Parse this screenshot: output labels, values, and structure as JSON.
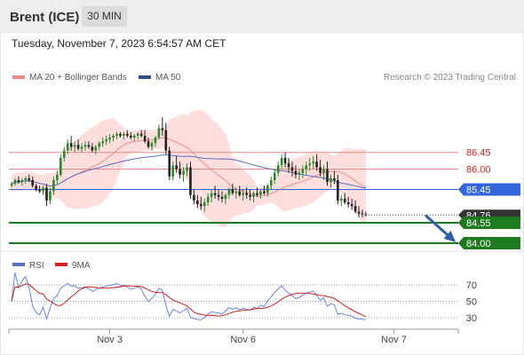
{
  "header": {
    "title": "Brent (ICE)",
    "timeframe": "30 MIN"
  },
  "timestamp": "Tuesday, November 7, 2023 6:54:57 AM CET",
  "legend": {
    "ma20": "MA 20 + Bollinger Bands",
    "ma50": "MA 50",
    "copyright": "Research © 2023 Trading Central"
  },
  "rsi_legend": {
    "rsi": "RSI",
    "ma9": "9MA"
  },
  "colors": {
    "ma20": "#f08a8a",
    "band": "#ffd6d6",
    "ma50": "#5c6fc4",
    "up": "#2a8a2a",
    "down": "#222222",
    "resistance": "#f08a8a",
    "support": "#1e7a1e",
    "pivot": "#3366dd",
    "price_tag": "#333333",
    "arrow": "#2f5fa0",
    "rsi": "#6a85e0",
    "rsi_ma": "#d42020"
  },
  "chart_data": {
    "type": "candlestick",
    "ylim": [
      83.64,
      88.24
    ],
    "levels": [
      {
        "value": 86.45,
        "label": "86.45",
        "kind": "resistance"
      },
      {
        "value": 86.0,
        "label": "86.00",
        "kind": "resistance"
      },
      {
        "value": 85.45,
        "label": "85.45",
        "kind": "pivot"
      },
      {
        "value": 84.55,
        "label": "84.55",
        "kind": "support"
      },
      {
        "value": 84.0,
        "label": "84.00",
        "kind": "support"
      }
    ],
    "last_price": {
      "value": 84.76,
      "label": "84.76"
    },
    "forecast": {
      "from_bar": 118,
      "from": 84.75,
      "to": 84.0
    },
    "x_labels": [
      {
        "bar": 28,
        "label": "Nov 3"
      },
      {
        "bar": 66,
        "label": "Nov 6"
      },
      {
        "bar": 109,
        "label": "Nov 7"
      }
    ],
    "candles": [
      [
        85.55,
        85.65,
        85.5,
        85.6
      ],
      [
        85.6,
        85.75,
        85.55,
        85.7
      ],
      [
        85.7,
        85.8,
        85.6,
        85.65
      ],
      [
        85.65,
        85.75,
        85.55,
        85.7
      ],
      [
        85.7,
        85.8,
        85.6,
        85.75
      ],
      [
        85.75,
        85.85,
        85.65,
        85.7
      ],
      [
        85.7,
        85.8,
        85.5,
        85.55
      ],
      [
        85.55,
        85.6,
        85.4,
        85.45
      ],
      [
        85.45,
        85.55,
        85.35,
        85.4
      ],
      [
        85.4,
        85.55,
        85.3,
        85.5
      ],
      [
        85.5,
        85.6,
        85.0,
        85.15
      ],
      [
        85.15,
        85.5,
        85.05,
        85.4
      ],
      [
        85.4,
        85.8,
        85.3,
        85.7
      ],
      [
        85.7,
        85.95,
        85.6,
        85.85
      ],
      [
        85.85,
        86.4,
        85.8,
        86.3
      ],
      [
        86.3,
        86.6,
        86.2,
        86.5
      ],
      [
        86.5,
        86.8,
        86.4,
        86.7
      ],
      [
        86.7,
        86.9,
        86.5,
        86.6
      ],
      [
        86.6,
        86.75,
        86.45,
        86.65
      ],
      [
        86.65,
        86.8,
        86.5,
        86.55
      ],
      [
        86.55,
        86.7,
        86.45,
        86.6
      ],
      [
        86.6,
        86.75,
        86.5,
        86.65
      ],
      [
        86.65,
        86.75,
        86.55,
        86.6
      ],
      [
        86.6,
        86.7,
        86.45,
        86.5
      ],
      [
        86.5,
        86.65,
        86.4,
        86.6
      ],
      [
        86.6,
        86.75,
        86.5,
        86.7
      ],
      [
        86.7,
        86.85,
        86.6,
        86.75
      ],
      [
        86.75,
        86.9,
        86.65,
        86.8
      ],
      [
        86.8,
        86.95,
        86.7,
        86.85
      ],
      [
        86.85,
        86.95,
        86.75,
        86.9
      ],
      [
        86.9,
        87.0,
        86.8,
        86.95
      ],
      [
        86.95,
        87.0,
        86.85,
        86.9
      ],
      [
        86.9,
        87.0,
        86.8,
        86.95
      ],
      [
        86.95,
        87.05,
        86.85,
        86.9
      ],
      [
        86.9,
        87.0,
        86.8,
        86.85
      ],
      [
        86.85,
        86.95,
        86.75,
        86.9
      ],
      [
        86.9,
        87.0,
        86.8,
        86.95
      ],
      [
        86.95,
        87.05,
        86.85,
        86.9
      ],
      [
        86.9,
        87.05,
        86.7,
        86.75
      ],
      [
        86.75,
        86.85,
        86.55,
        86.6
      ],
      [
        86.6,
        86.75,
        86.5,
        86.7
      ],
      [
        86.7,
        86.9,
        86.6,
        86.85
      ],
      [
        86.85,
        87.2,
        86.8,
        87.1
      ],
      [
        87.1,
        87.4,
        86.9,
        87.05
      ],
      [
        87.05,
        87.25,
        86.4,
        86.5
      ],
      [
        86.5,
        86.6,
        85.7,
        85.8
      ],
      [
        85.8,
        86.2,
        85.7,
        86.1
      ],
      [
        86.1,
        86.35,
        85.9,
        86.0
      ],
      [
        86.0,
        86.2,
        85.75,
        85.85
      ],
      [
        85.85,
        86.05,
        85.65,
        85.95
      ],
      [
        85.95,
        86.15,
        85.8,
        86.05
      ],
      [
        86.05,
        86.2,
        85.2,
        85.3
      ],
      [
        85.3,
        85.45,
        85.05,
        85.15
      ],
      [
        85.15,
        85.3,
        84.95,
        85.05
      ],
      [
        85.05,
        85.25,
        84.9,
        85.0
      ],
      [
        85.0,
        85.2,
        84.85,
        85.1
      ],
      [
        85.1,
        85.35,
        85.0,
        85.25
      ],
      [
        85.25,
        85.45,
        85.1,
        85.35
      ],
      [
        85.35,
        85.55,
        85.2,
        85.3
      ],
      [
        85.3,
        85.45,
        85.15,
        85.25
      ],
      [
        85.25,
        85.4,
        85.1,
        85.2
      ],
      [
        85.2,
        85.35,
        85.05,
        85.3
      ],
      [
        85.3,
        85.5,
        85.2,
        85.45
      ],
      [
        85.45,
        85.6,
        85.3,
        85.35
      ],
      [
        85.35,
        85.5,
        85.2,
        85.4
      ],
      [
        85.4,
        85.55,
        85.25,
        85.3
      ],
      [
        85.3,
        85.45,
        85.15,
        85.35
      ],
      [
        85.35,
        85.5,
        85.2,
        85.3
      ],
      [
        85.3,
        85.45,
        85.15,
        85.25
      ],
      [
        85.25,
        85.4,
        85.1,
        85.35
      ],
      [
        85.35,
        85.5,
        85.25,
        85.3
      ],
      [
        85.3,
        85.45,
        85.2,
        85.4
      ],
      [
        85.4,
        85.55,
        85.3,
        85.35
      ],
      [
        85.35,
        85.6,
        85.25,
        85.55
      ],
      [
        85.55,
        85.8,
        85.45,
        85.7
      ],
      [
        85.7,
        86.0,
        85.6,
        85.9
      ],
      [
        85.9,
        86.2,
        85.8,
        86.1
      ],
      [
        86.1,
        86.4,
        86.0,
        86.3
      ],
      [
        86.3,
        86.45,
        86.05,
        86.15
      ],
      [
        86.15,
        86.3,
        85.9,
        86.05
      ],
      [
        86.05,
        86.2,
        85.8,
        85.95
      ],
      [
        85.95,
        86.1,
        85.75,
        85.85
      ],
      [
        85.85,
        86.0,
        85.7,
        85.9
      ],
      [
        85.9,
        86.1,
        85.75,
        86.0
      ],
      [
        86.0,
        86.2,
        85.85,
        86.1
      ],
      [
        86.1,
        86.3,
        85.95,
        86.15
      ],
      [
        86.15,
        86.35,
        86.0,
        86.2
      ],
      [
        86.2,
        86.4,
        85.95,
        86.05
      ],
      [
        86.05,
        86.25,
        85.8,
        85.9
      ],
      [
        85.9,
        86.1,
        85.7,
        86.0
      ],
      [
        86.0,
        86.2,
        85.55,
        85.65
      ],
      [
        85.65,
        85.85,
        85.5,
        85.75
      ],
      [
        85.75,
        85.95,
        85.6,
        85.7
      ],
      [
        85.7,
        85.85,
        85.05,
        85.15
      ],
      [
        85.15,
        85.3,
        85.0,
        85.2
      ],
      [
        85.2,
        85.35,
        85.05,
        85.1
      ],
      [
        85.1,
        85.25,
        84.95,
        85.05
      ],
      [
        85.05,
        85.2,
        84.9,
        85.0
      ],
      [
        85.0,
        85.15,
        84.8,
        84.85
      ],
      [
        84.85,
        85.0,
        84.7,
        84.8
      ],
      [
        84.8,
        84.9,
        84.7,
        84.78
      ],
      [
        84.78,
        84.85,
        84.72,
        84.76
      ]
    ]
  },
  "rsi_chart": {
    "type": "line",
    "ylim": [
      20,
      80
    ],
    "ticks": [
      {
        "value": 70,
        "label": "70"
      },
      {
        "value": 50,
        "label": "50"
      },
      {
        "value": 30,
        "label": "30"
      }
    ]
  }
}
